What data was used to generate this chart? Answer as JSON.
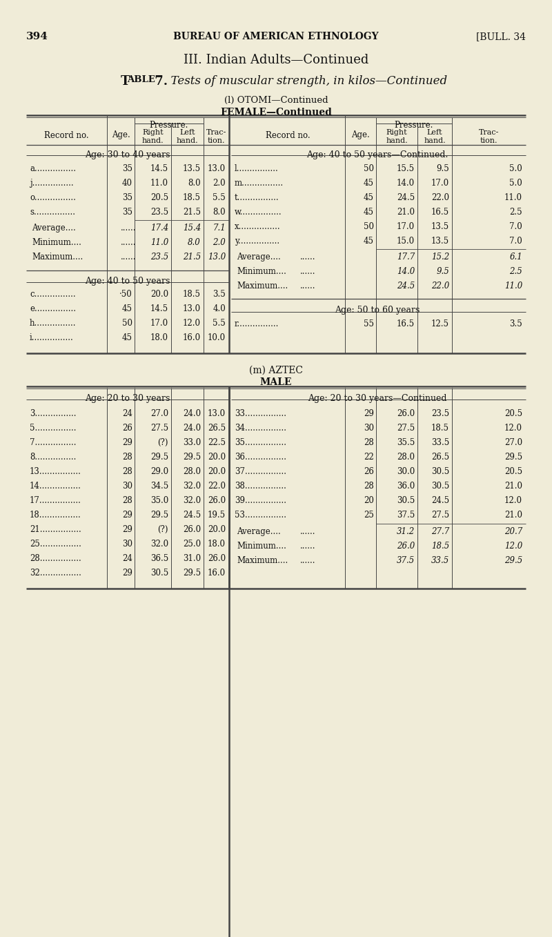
{
  "bg_color": "#f0ecd8",
  "text_color": "#111111",
  "page_num": "394",
  "header_center": "BUREAU OF AMERICAN ETHNOLOGY",
  "header_right": "[BULL. 34",
  "title1": "III. Indian Adults—Continued",
  "title2_pre": "Table 7.",
  "title2_italic": "  Tests of muscular strength, in kilos",
  "title2_post": "—Continued",
  "subtitle1": "(l) OTOMI—Continued",
  "subtitle2": "FEMALE—Continued",
  "subtitle3": "(m) AZTEC",
  "subtitle4": "MALE",
  "t1_left_rows_sec1": [
    [
      "a",
      "35",
      "14.5",
      "13.5",
      "13.0"
    ],
    [
      "j",
      "40",
      "11.0",
      "8.0",
      "2.0"
    ],
    [
      "o",
      "35",
      "20.5",
      "18.5",
      "5.5"
    ],
    [
      "s",
      "35",
      "23.5",
      "21.5",
      "8.0"
    ]
  ],
  "t1_left_stats1": [
    [
      "Average",
      "17.4",
      "15.4",
      "7.1"
    ],
    [
      "Minimum",
      "11.0",
      "8.0",
      "2.0"
    ],
    [
      "Maximum",
      "23.5",
      "21.5",
      "13.0"
    ]
  ],
  "t1_left_rows_sec2": [
    [
      "c",
      "·50",
      "20.0",
      "18.5",
      "3.5"
    ],
    [
      "e",
      "45",
      "14.5",
      "13.0",
      "4.0"
    ],
    [
      "h",
      "50",
      "17.0",
      "12.0",
      "5.5"
    ],
    [
      "i",
      "45",
      "18.0",
      "16.0",
      "10.0"
    ]
  ],
  "t1_right_rows_sec1": [
    [
      "l",
      "50",
      "15.5",
      "9.5",
      "5.0"
    ],
    [
      "m",
      "45",
      "14.0",
      "17.0",
      "5.0"
    ],
    [
      "t",
      "45",
      "24.5",
      "22.0",
      "11.0"
    ],
    [
      "w",
      "45",
      "21.0",
      "16.5",
      "2.5"
    ],
    [
      "x",
      "50",
      "17.0",
      "13.5",
      "7.0"
    ],
    [
      "y",
      "45",
      "15.0",
      "13.5",
      "7.0"
    ]
  ],
  "t1_right_stats1": [
    [
      "Average",
      "17.7",
      "15.2",
      "6.1"
    ],
    [
      "Minimum",
      "14.0",
      "9.5",
      "2.5"
    ],
    [
      "Maximum",
      "24.5",
      "22.0",
      "11.0"
    ]
  ],
  "t1_right_rows_sec2": [
    [
      "r",
      "55",
      "16.5",
      "12.5",
      "3.5"
    ]
  ],
  "t2_left_rows": [
    [
      "3",
      "24",
      "27.0",
      "24.0",
      "13.0"
    ],
    [
      "5",
      "26",
      "27.5",
      "24.0",
      "26.5"
    ],
    [
      "7",
      "29",
      "(?)",
      "33.0",
      "22.5"
    ],
    [
      "8",
      "28",
      "29.5",
      "29.5",
      "20.0"
    ],
    [
      "13",
      "28",
      "29.0",
      "28.0",
      "20.0"
    ],
    [
      "14",
      "30",
      "34.5",
      "32.0",
      "22.0"
    ],
    [
      "17",
      "28",
      "35.0",
      "32.0",
      "26.0"
    ],
    [
      "18",
      "29",
      "29.5",
      "24.5",
      "19.5"
    ],
    [
      "21",
      "29",
      "(?)",
      "26.0",
      "20.0"
    ],
    [
      "25",
      "30",
      "32.0",
      "25.0",
      "18.0"
    ],
    [
      "28",
      "24",
      "36.5",
      "31.0",
      "26.0"
    ],
    [
      "32",
      "29",
      "30.5",
      "29.5",
      "16.0"
    ]
  ],
  "t2_right_rows": [
    [
      "33",
      "29",
      "26.0",
      "23.5",
      "20.5"
    ],
    [
      "34",
      "30",
      "27.5",
      "18.5",
      "12.0"
    ],
    [
      "35",
      "28",
      "35.5",
      "33.5",
      "27.0"
    ],
    [
      "36",
      "22",
      "28.0",
      "26.5",
      "29.5"
    ],
    [
      "37",
      "26",
      "30.0",
      "30.5",
      "20.5"
    ],
    [
      "38",
      "28",
      "36.0",
      "30.5",
      "21.0"
    ],
    [
      "39",
      "20",
      "30.5",
      "24.5",
      "12.0"
    ],
    [
      "53",
      "25",
      "37.5",
      "27.5",
      "21.0"
    ]
  ],
  "t2_right_stats": [
    [
      "Average",
      "31.2",
      "27.7",
      "20.7"
    ],
    [
      "Minimum",
      "26.0",
      "18.5",
      "12.0"
    ],
    [
      "Maximum",
      "37.5",
      "33.5",
      "29.5"
    ]
  ]
}
